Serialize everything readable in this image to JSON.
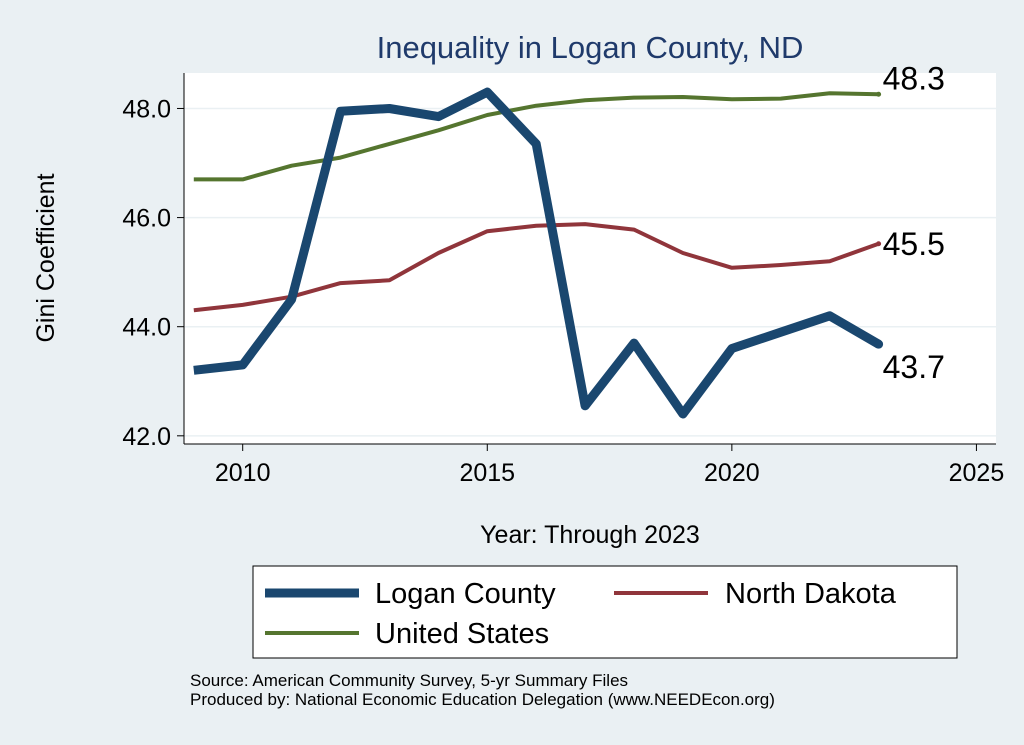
{
  "chart_data": {
    "type": "line",
    "title": "Inequality in Logan County, ND",
    "xlabel": "Year: Through 2023",
    "ylabel": "Gini Coefficient",
    "xlim": [
      2008.8,
      2025.4
    ],
    "ylim": [
      41.85,
      48.65
    ],
    "xticks": [
      2010,
      2015,
      2020,
      2025
    ],
    "xtick_labels": [
      "2010",
      "2015",
      "2020",
      "2025"
    ],
    "yticks": [
      42,
      44,
      46,
      48
    ],
    "ytick_labels": [
      "42.0",
      "44.0",
      "46.0",
      "48.0"
    ],
    "x": [
      2009,
      2010,
      2011,
      2012,
      2013,
      2014,
      2015,
      2016,
      2017,
      2018,
      2019,
      2020,
      2021,
      2022,
      2023
    ],
    "series": [
      {
        "name": "Logan County",
        "color": "#1a476f",
        "values": [
          43.2,
          43.3,
          44.5,
          47.95,
          48.0,
          47.85,
          48.3,
          47.35,
          42.55,
          43.7,
          42.4,
          43.6,
          43.9,
          44.2,
          43.68
        ],
        "end_label": "43.7"
      },
      {
        "name": "North Dakota",
        "color": "#90353b",
        "values": [
          44.3,
          44.4,
          44.55,
          44.8,
          44.85,
          45.35,
          45.75,
          45.85,
          45.88,
          45.78,
          45.35,
          45.08,
          45.13,
          45.2,
          45.52
        ],
        "end_label": "45.5"
      },
      {
        "name": "United States",
        "color": "#55752f",
        "values": [
          46.7,
          46.7,
          46.95,
          47.1,
          47.35,
          47.6,
          47.88,
          48.05,
          48.15,
          48.2,
          48.21,
          48.17,
          48.18,
          48.28,
          48.26
        ],
        "end_label": "48.3"
      }
    ],
    "legend": [
      "Logan County",
      "North Dakota",
      "United States"
    ],
    "legend_position": "bottom",
    "grid": true
  },
  "source_lines": [
    "Source: American Community Survey, 5-yr Summary Files",
    "Produced by: National Economic Education Delegation (www.NEEDEcon.org)"
  ]
}
